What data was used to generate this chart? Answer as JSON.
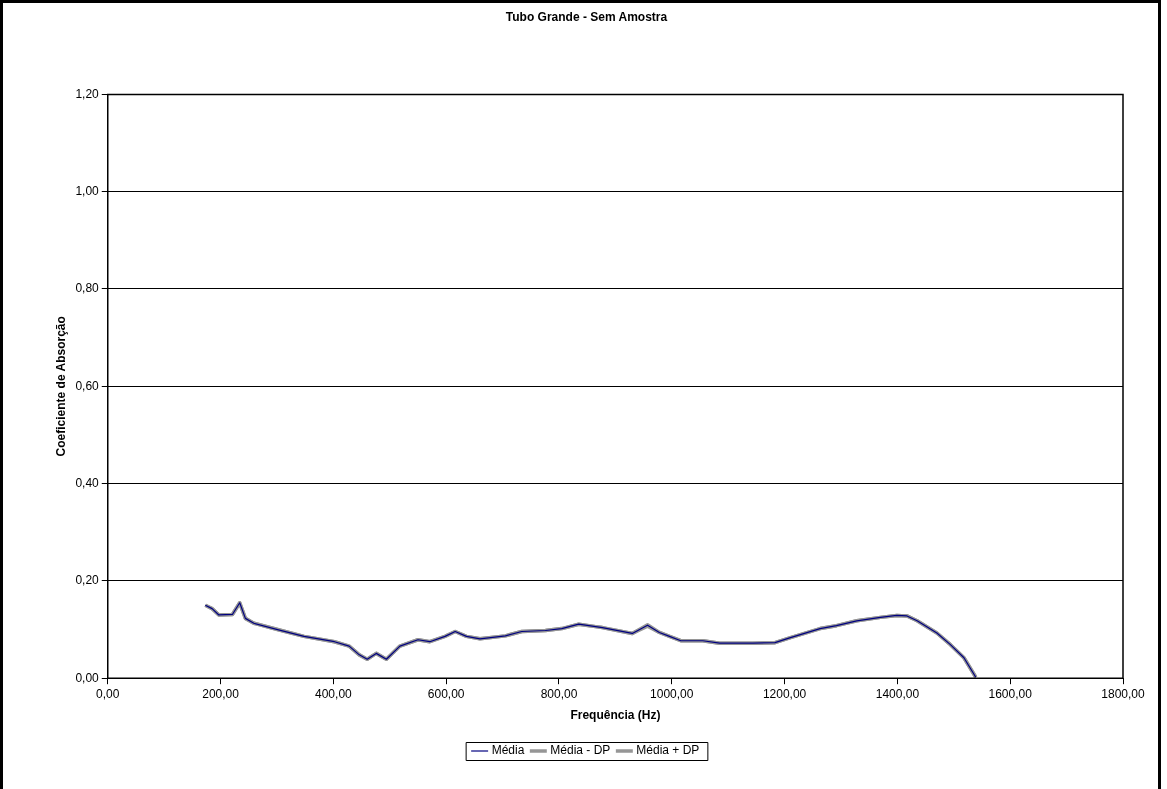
{
  "chart_data": {
    "type": "line",
    "title": "Tubo Grande - Sem Amostra",
    "xlabel": "Frequência (Hz)",
    "ylabel": "Coeficiente de Absorção",
    "xlim": [
      0,
      1800
    ],
    "xticks": [
      {
        "value": 0,
        "label": "0,00"
      },
      {
        "value": 200,
        "label": "200,00"
      },
      {
        "value": 400,
        "label": "400,00"
      },
      {
        "value": 600,
        "label": "600,00"
      },
      {
        "value": 800,
        "label": "800,00"
      },
      {
        "value": 1000,
        "label": "1000,00"
      },
      {
        "value": 1200,
        "label": "1200,00"
      },
      {
        "value": 1400,
        "label": "1400,00"
      },
      {
        "value": 1600,
        "label": "1600,00"
      },
      {
        "value": 1800,
        "label": "1800,00"
      }
    ],
    "ylim": [
      0,
      1.2
    ],
    "yticks": [
      {
        "value": 0,
        "label": "0,00"
      },
      {
        "value": 0.2,
        "label": "0,20"
      },
      {
        "value": 0.4,
        "label": "0,40"
      },
      {
        "value": 0.6,
        "label": "0,60"
      },
      {
        "value": 0.8,
        "label": "0,80"
      },
      {
        "value": 1,
        "label": "1,00"
      },
      {
        "value": 1.2,
        "label": "1,20"
      }
    ],
    "grid": "y",
    "legend": "bottom",
    "marker": "none",
    "line_style": "solid",
    "x": [
      173,
      185,
      197,
      221,
      234,
      244,
      259,
      301,
      348,
      402,
      428,
      446,
      460,
      476,
      494,
      518,
      550,
      571,
      598,
      616,
      636,
      660,
      705,
      734,
      776,
      805,
      835,
      865,
      877,
      930,
      957,
      978,
      996,
      1016,
      1055,
      1085,
      1144,
      1183,
      1209,
      1263,
      1292,
      1328,
      1370,
      1399,
      1417,
      1435,
      1470,
      1494,
      1518,
      1539
    ],
    "series": [
      {
        "name": "Média",
        "color": "#000080",
        "values": [
          0.15,
          0.143,
          0.13,
          0.131,
          0.155,
          0.123,
          0.113,
          0.1,
          0.086,
          0.075,
          0.066,
          0.048,
          0.039,
          0.051,
          0.039,
          0.066,
          0.079,
          0.075,
          0.086,
          0.096,
          0.086,
          0.081,
          0.087,
          0.096,
          0.098,
          0.102,
          0.111,
          0.106,
          0.104,
          0.092,
          0.109,
          0.094,
          0.086,
          0.077,
          0.077,
          0.072,
          0.072,
          0.073,
          0.083,
          0.102,
          0.108,
          0.118,
          0.125,
          0.129,
          0.128,
          0.118,
          0.093,
          0.069,
          0.042,
          0.002
        ]
      },
      {
        "name": "Média - DP",
        "color": "#969696",
        "values": [
          0.15,
          0.143,
          0.13,
          0.131,
          0.155,
          0.123,
          0.113,
          0.1,
          0.086,
          0.075,
          0.066,
          0.048,
          0.039,
          0.051,
          0.039,
          0.066,
          0.079,
          0.075,
          0.086,
          0.096,
          0.086,
          0.081,
          0.087,
          0.096,
          0.098,
          0.102,
          0.111,
          0.106,
          0.104,
          0.092,
          0.107,
          0.094,
          0.086,
          0.077,
          0.077,
          0.072,
          0.072,
          0.073,
          0.083,
          0.102,
          0.108,
          0.118,
          0.125,
          0.129,
          0.128,
          0.118,
          0.093,
          0.069,
          0.042,
          0.002
        ]
      },
      {
        "name": "Média + DP",
        "color": "#969696",
        "values": [
          0.15,
          0.143,
          0.13,
          0.131,
          0.155,
          0.123,
          0.113,
          0.1,
          0.086,
          0.075,
          0.066,
          0.048,
          0.039,
          0.051,
          0.039,
          0.066,
          0.079,
          0.075,
          0.086,
          0.096,
          0.086,
          0.081,
          0.087,
          0.096,
          0.098,
          0.102,
          0.111,
          0.106,
          0.104,
          0.092,
          0.11,
          0.094,
          0.086,
          0.077,
          0.077,
          0.072,
          0.072,
          0.073,
          0.083,
          0.102,
          0.108,
          0.118,
          0.125,
          0.129,
          0.128,
          0.118,
          0.093,
          0.069,
          0.042,
          0.002
        ]
      }
    ]
  }
}
